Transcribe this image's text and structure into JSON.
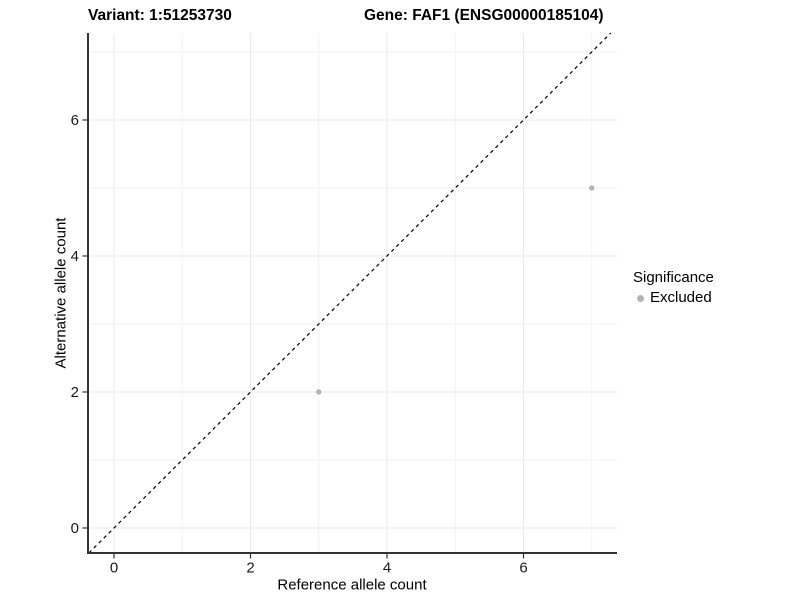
{
  "chart_data": {
    "type": "scatter",
    "title_left": "Variant: 1:51253730",
    "title_right": "Gene: FAF1 (ENSG00000185104)",
    "xlabel": "Reference allele count",
    "ylabel": "Alternative allele count",
    "xlim": [
      -0.381,
      7.37
    ],
    "ylim": [
      -0.368,
      7.279
    ],
    "x_major_ticks": [
      0,
      2,
      4,
      6
    ],
    "y_major_ticks": [
      0,
      2,
      4,
      6
    ],
    "x_minor_ticks": [
      1,
      3,
      5,
      7
    ],
    "y_minor_ticks": [
      1,
      3,
      5,
      7
    ],
    "grid": true,
    "series": [
      {
        "name": "Excluded",
        "color": "#b3b3b3",
        "points": [
          [
            3,
            2
          ],
          [
            7,
            5
          ]
        ]
      }
    ],
    "reference_line": {
      "slope": 1,
      "intercept": 0,
      "style": "dashed",
      "color": "#000000"
    },
    "legend": {
      "title": "Significance",
      "position": "right",
      "items": [
        {
          "label": "Excluded",
          "color": "#b3b3b3"
        }
      ]
    }
  },
  "colors": {
    "background": "#ffffff",
    "grid_major": "#e8e8e8",
    "grid_minor": "#f2f2f2",
    "axis_line": "#333333",
    "tick_mark": "#333333",
    "tick_label": "#1a1a1a",
    "text": "#000000"
  }
}
